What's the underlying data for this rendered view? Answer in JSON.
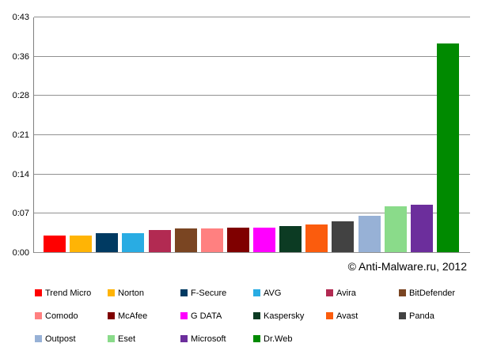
{
  "watermark": "© Anti-Malware.ru, 2012",
  "colors": {
    "background": "#FFFFFF",
    "axis": "#808080",
    "grid": "#919191",
    "text": "#000000"
  },
  "chart_data": {
    "type": "bar",
    "title": "",
    "xlabel": "",
    "ylabel": "",
    "y_axis_format": "m:ss",
    "y_max_seconds": 43,
    "y_ticks": [
      "0:00",
      "0:07",
      "0:14",
      "0:21",
      "0:28",
      "0:36",
      "0:43"
    ],
    "grid": true,
    "legend_position": "bottom",
    "categories": [
      "Trend Micro",
      "Norton",
      "F-Secure",
      "AVG",
      "Avira",
      "BitDefender",
      "Comodo",
      "McAfee",
      "G DATA",
      "Kaspersky",
      "Avast",
      "Panda",
      "Outpost",
      "Eset",
      "Microsoft",
      "Dr.Web"
    ],
    "values_seconds": [
      3.0,
      3.1,
      3.5,
      3.5,
      4.0,
      4.3,
      4.4,
      4.5,
      4.5,
      4.7,
      5.0,
      5.6,
      6.6,
      8.3,
      8.7,
      38.1
    ],
    "bar_colors": [
      "#FF0000",
      "#FFB405",
      "#003A62",
      "#29ACE3",
      "#B22A52",
      "#7A4522",
      "#FF8080",
      "#7F0000",
      "#FF00FF",
      "#0C3B23",
      "#FB5C0D",
      "#424242",
      "#97B1D6",
      "#8ADB8A",
      "#6C2E9C",
      "#008A00"
    ]
  }
}
